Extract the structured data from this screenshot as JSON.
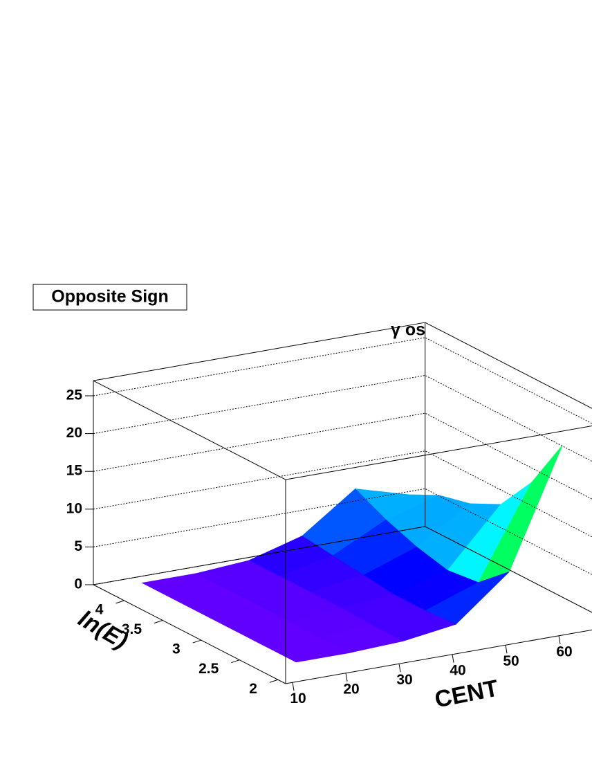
{
  "chart_data": {
    "type": "surface",
    "title": "γ os",
    "legend_label": "Opposite Sign",
    "xlabel": "CENT",
    "ylabel": "ln(E)",
    "x": [
      15,
      25,
      35,
      45,
      55,
      65
    ],
    "y": [
      2.2,
      2.6,
      3.0,
      3.4,
      3.8,
      4.2
    ],
    "z": [
      [
        0.5,
        0.5,
        0.8,
        1.8,
        7.5,
        23
      ],
      [
        0.5,
        0.5,
        0.8,
        1.5,
        4,
        16
      ],
      [
        0.5,
        0.5,
        1,
        1.5,
        3.5,
        11
      ],
      [
        0.5,
        0.5,
        1,
        2,
        4.5,
        9
      ],
      [
        0.5,
        0.5,
        1,
        2.5,
        6,
        8
      ],
      [
        0.5,
        0.5,
        1,
        3,
        8,
        6
      ]
    ],
    "xlim": [
      8.7,
      71
    ],
    "xticks": [
      10,
      20,
      30,
      40,
      50,
      60
    ],
    "ylim": [
      1.9,
      4.4
    ],
    "yticks": [
      2,
      2.5,
      3,
      3.5,
      4
    ],
    "zlim": [
      0,
      27
    ],
    "zticks": [
      0,
      5,
      10,
      15,
      20,
      25
    ],
    "grid": true
  }
}
